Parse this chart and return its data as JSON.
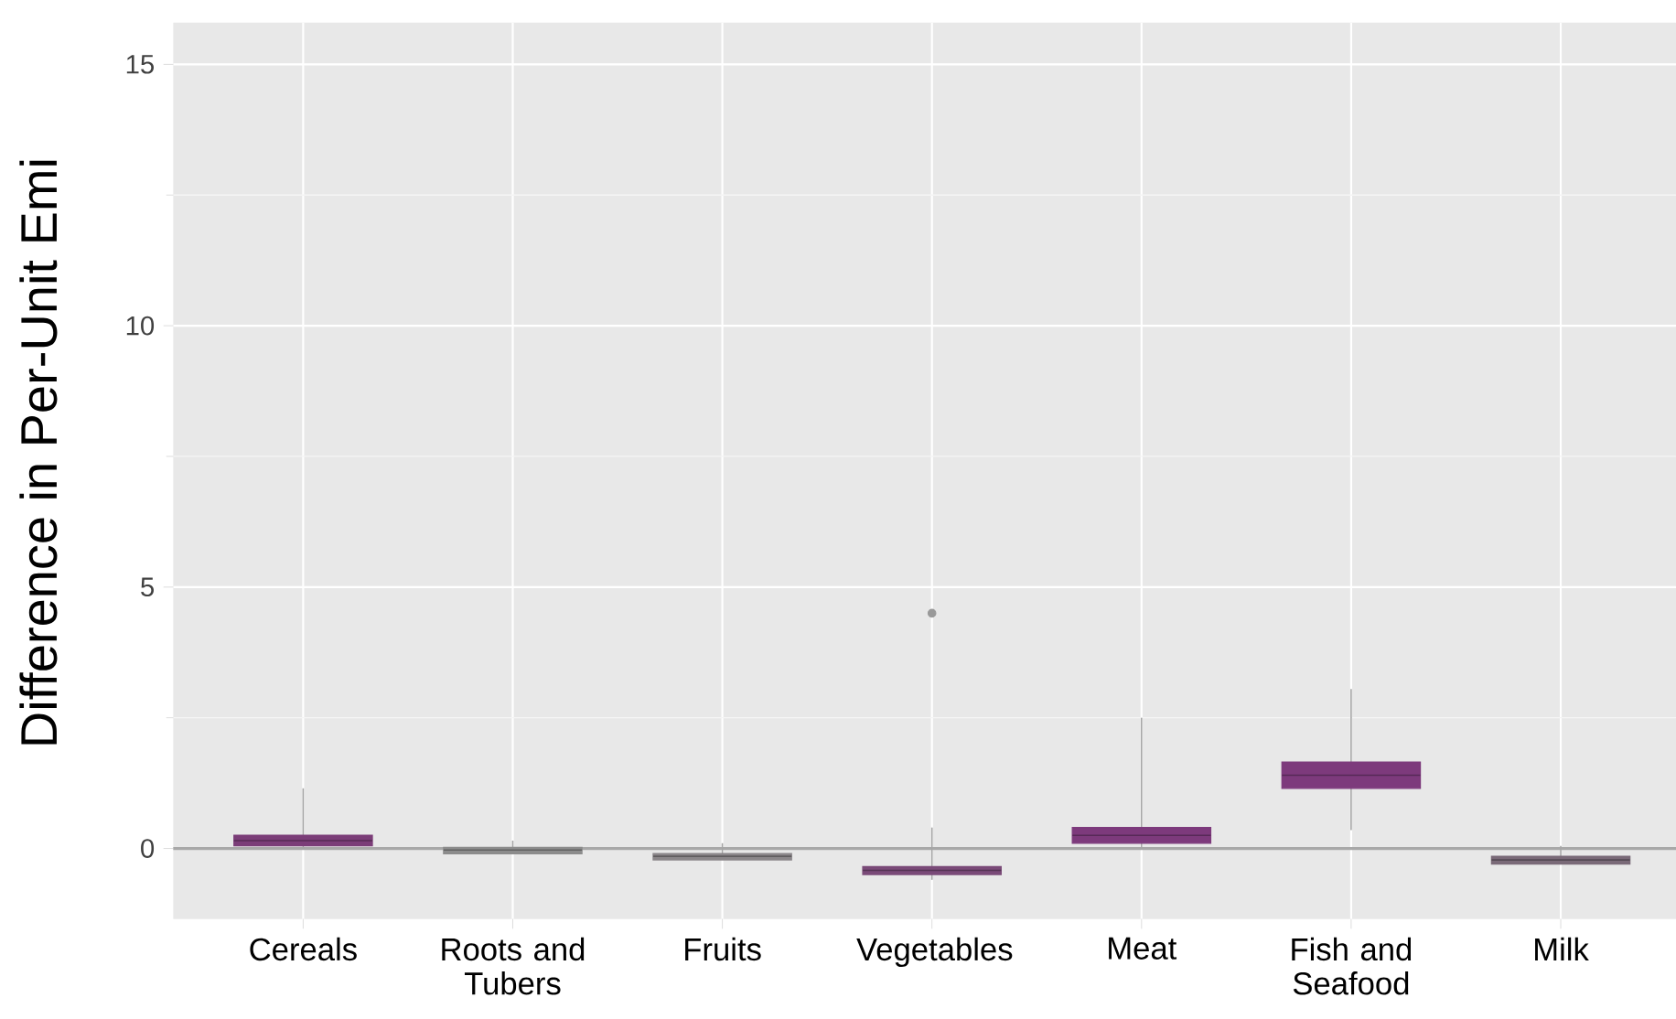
{
  "chart_data": {
    "type": "box",
    "ylabel": "Difference in Per-Unit Emi",
    "categories": [
      "Cereals",
      "Roots and Tubers",
      "Fruits",
      "Vegetables",
      "Meat",
      "Fish and Seafood",
      "Milk"
    ],
    "boxes": [
      {
        "low": 0.0,
        "q1": 0.05,
        "median": 0.15,
        "q3": 0.25,
        "high": 1.15
      },
      {
        "low": -0.1,
        "q1": -0.1,
        "median": -0.03,
        "q3": 0.02,
        "high": 0.15
      },
      {
        "low": -0.2,
        "q1": -0.22,
        "median": -0.15,
        "q3": -0.1,
        "high": 0.1
      },
      {
        "low": -0.6,
        "q1": -0.5,
        "median": -0.42,
        "q3": -0.35,
        "high": 0.4,
        "outliers": [
          4.5
        ]
      },
      {
        "low": 0.0,
        "q1": 0.1,
        "median": 0.25,
        "q3": 0.4,
        "high": 2.5
      },
      {
        "low": 0.35,
        "q1": 1.15,
        "median": 1.4,
        "q3": 1.65,
        "high": 3.05
      },
      {
        "low": -0.3,
        "q1": -0.3,
        "median": -0.22,
        "q3": -0.15,
        "high": 0.05
      }
    ],
    "colors": [
      "#7b3d78",
      "#8c8c8c",
      "#8a8689",
      "#7a4a78",
      "#7d3a7c",
      "#7d3a7c",
      "#7a6a78"
    ],
    "ylim": [
      -1.35,
      15.8
    ],
    "yticks": [
      0,
      5,
      10,
      15
    ],
    "ref_lines": [
      {
        "axis": "y",
        "value": 0,
        "color": "#a8a8a8"
      }
    ],
    "grid": true
  }
}
